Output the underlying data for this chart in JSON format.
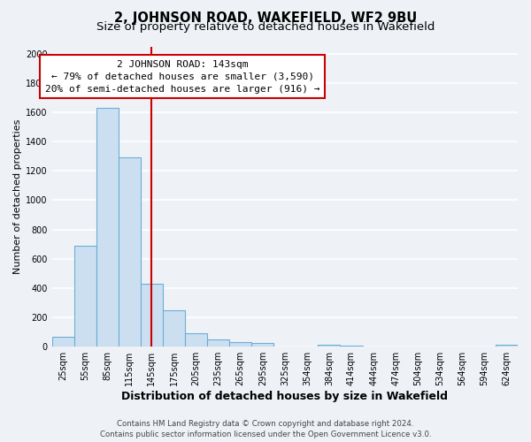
{
  "title": "2, JOHNSON ROAD, WAKEFIELD, WF2 9BU",
  "subtitle": "Size of property relative to detached houses in Wakefield",
  "xlabel": "Distribution of detached houses by size in Wakefield",
  "ylabel": "Number of detached properties",
  "bar_labels": [
    "25sqm",
    "55sqm",
    "85sqm",
    "115sqm",
    "145sqm",
    "175sqm",
    "205sqm",
    "235sqm",
    "265sqm",
    "295sqm",
    "325sqm",
    "354sqm",
    "384sqm",
    "414sqm",
    "444sqm",
    "474sqm",
    "504sqm",
    "534sqm",
    "564sqm",
    "594sqm",
    "624sqm"
  ],
  "bar_values": [
    65,
    690,
    1630,
    1290,
    430,
    250,
    90,
    50,
    30,
    25,
    0,
    0,
    15,
    10,
    0,
    0,
    0,
    0,
    0,
    0,
    15
  ],
  "bar_color": "#ccdff0",
  "bar_edge_color": "#6aaed6",
  "vline_x_index": 4,
  "vline_color": "#cc0000",
  "annotation_title": "2 JOHNSON ROAD: 143sqm",
  "annotation_line1": "← 79% of detached houses are smaller (3,590)",
  "annotation_line2": "20% of semi-detached houses are larger (916) →",
  "annotation_box_color": "#cc0000",
  "ylim": [
    0,
    2050
  ],
  "yticks": [
    0,
    200,
    400,
    600,
    800,
    1000,
    1200,
    1400,
    1600,
    1800,
    2000
  ],
  "footer_line1": "Contains HM Land Registry data © Crown copyright and database right 2024.",
  "footer_line2": "Contains public sector information licensed under the Open Government Licence v3.0.",
  "background_color": "#eef2f7",
  "grid_color": "#ffffff",
  "fig_width": 6.0,
  "fig_height": 5.0,
  "title_fontsize": 10.5,
  "subtitle_fontsize": 9.5,
  "xlabel_fontsize": 9,
  "ylabel_fontsize": 8,
  "tick_fontsize": 7,
  "footer_fontsize": 6.2,
  "annotation_fontsize": 8
}
